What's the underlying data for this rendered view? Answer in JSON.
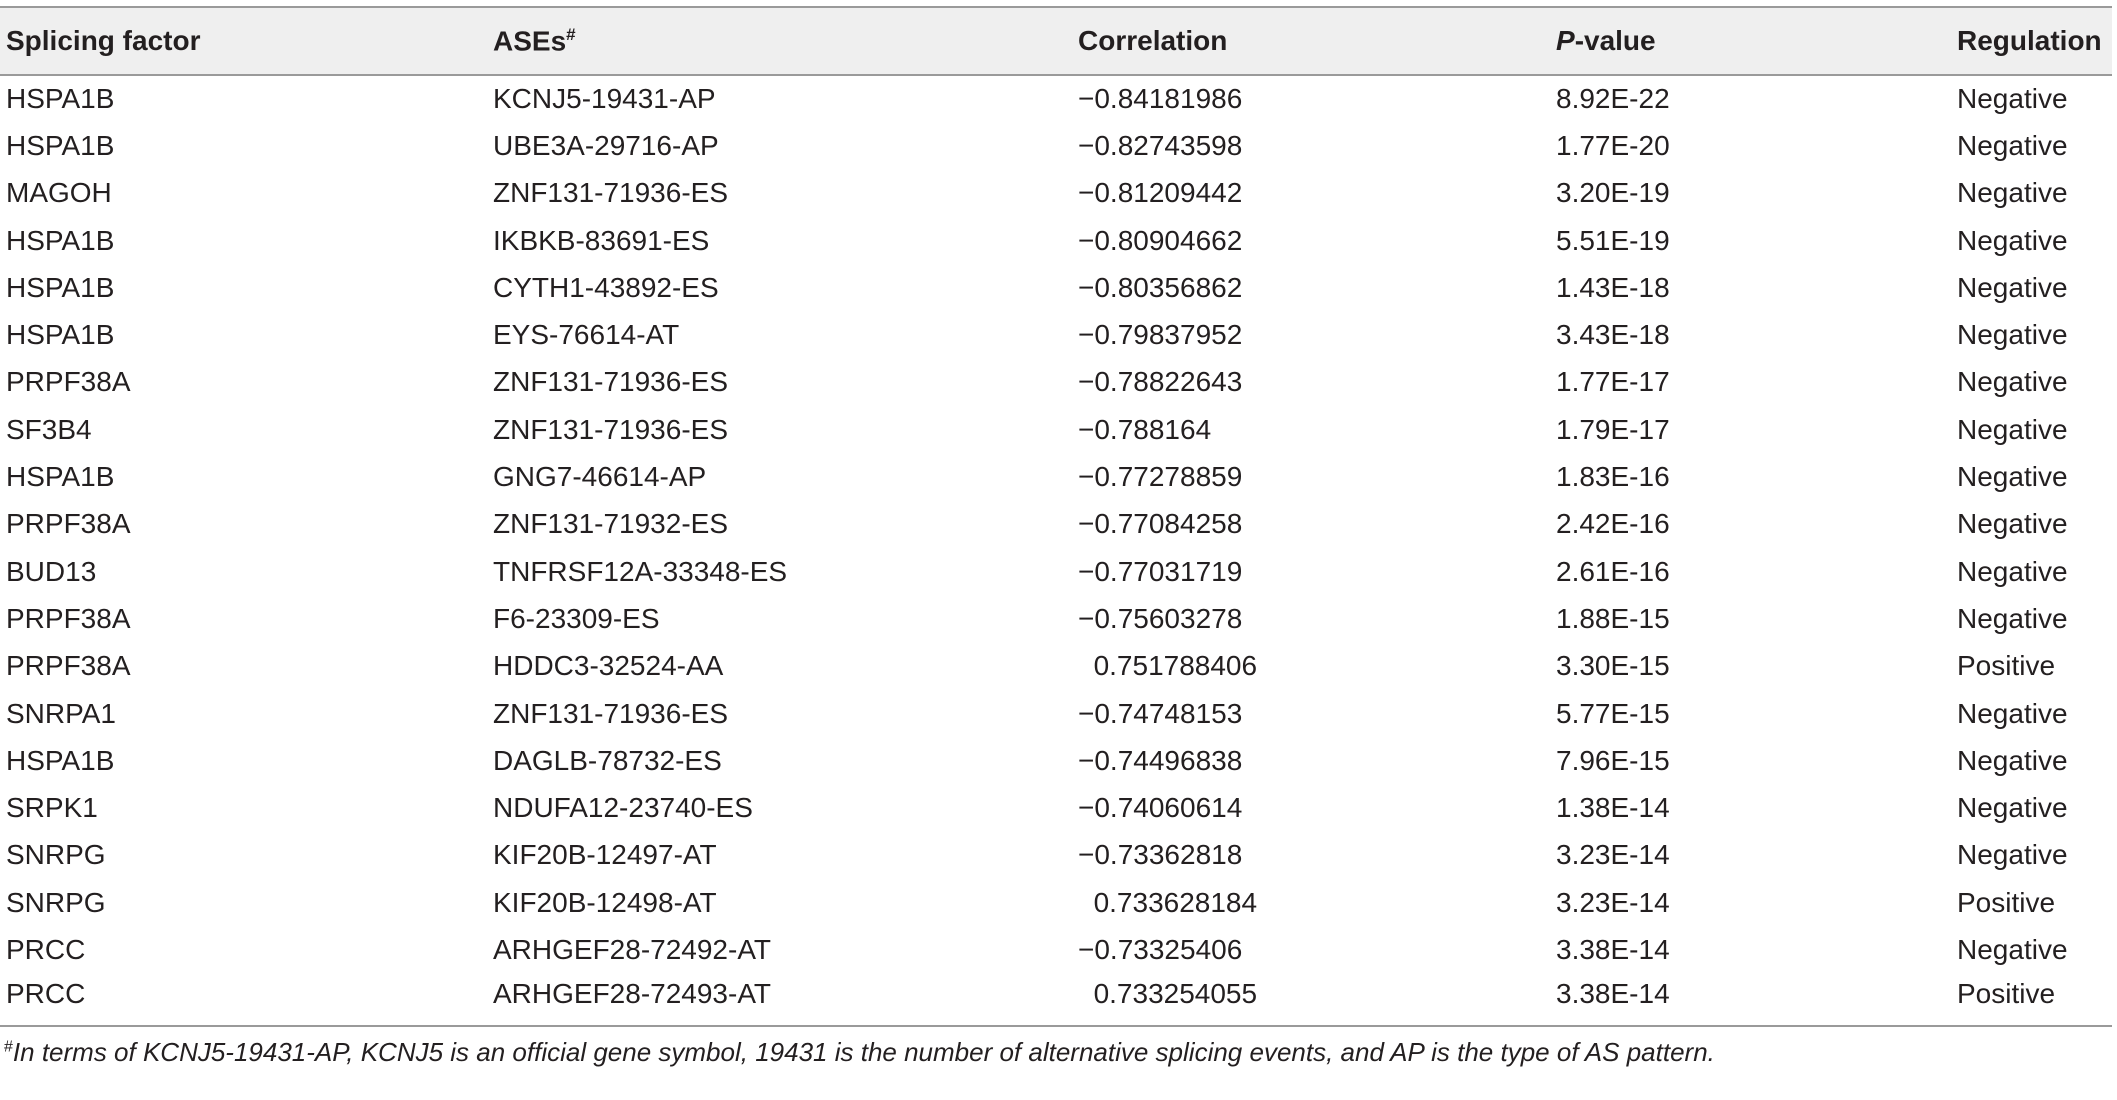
{
  "table": {
    "headers": {
      "splicing_factor": "Splicing factor",
      "ases": "ASEs",
      "ases_mark": "#",
      "correlation": "Correlation",
      "pvalue_italic": "P",
      "pvalue_rest": "-value",
      "regulation": "Regulation"
    },
    "rows": [
      [
        "HSPA1B",
        "KCNJ5-19431-AP",
        "−0.84181986",
        "8.92E-22",
        "Negative"
      ],
      [
        "HSPA1B",
        "UBE3A-29716-AP",
        "−0.82743598",
        "1.77E-20",
        "Negative"
      ],
      [
        "MAGOH",
        "ZNF131-71936-ES",
        "−0.81209442",
        "3.20E-19",
        "Negative"
      ],
      [
        "HSPA1B",
        "IKBKB-83691-ES",
        "−0.80904662",
        "5.51E-19",
        "Negative"
      ],
      [
        "HSPA1B",
        "CYTH1-43892-ES",
        "−0.80356862",
        "1.43E-18",
        "Negative"
      ],
      [
        "HSPA1B",
        "EYS-76614-AT",
        "−0.79837952",
        "3.43E-18",
        "Negative"
      ],
      [
        "PRPF38A",
        "ZNF131-71936-ES",
        "−0.78822643",
        "1.77E-17",
        "Negative"
      ],
      [
        "SF3B4",
        "ZNF131-71936-ES",
        "−0.788164",
        "1.79E-17",
        "Negative"
      ],
      [
        "HSPA1B",
        "GNG7-46614-AP",
        "−0.77278859",
        "1.83E-16",
        "Negative"
      ],
      [
        "PRPF38A",
        "ZNF131-71932-ES",
        "−0.77084258",
        "2.42E-16",
        "Negative"
      ],
      [
        "BUD13",
        "TNFRSF12A-33348-ES",
        "−0.77031719",
        "2.61E-16",
        "Negative"
      ],
      [
        "PRPF38A",
        "F6-23309-ES",
        "−0.75603278",
        "1.88E-15",
        "Negative"
      ],
      [
        "PRPF38A",
        "HDDC3-32524-AA",
        " 0.751788406",
        "3.30E-15",
        "Positive"
      ],
      [
        "SNRPA1",
        "ZNF131-71936-ES",
        "−0.74748153",
        "5.77E-15",
        "Negative"
      ],
      [
        "HSPA1B",
        "DAGLB-78732-ES",
        "−0.74496838",
        "7.96E-15",
        "Negative"
      ],
      [
        "SRPK1",
        "NDUFA12-23740-ES",
        "−0.74060614",
        "1.38E-14",
        "Negative"
      ],
      [
        "SNRPG",
        "KIF20B-12497-AT",
        "−0.73362818",
        "3.23E-14",
        "Negative"
      ],
      [
        "SNRPG",
        "KIF20B-12498-AT",
        " 0.733628184",
        "3.23E-14",
        "Positive"
      ],
      [
        "PRCC",
        "ARHGEF28-72492-AT",
        "−0.73325406",
        "3.38E-14",
        "Negative"
      ],
      [
        "PRCC",
        "ARHGEF28-72493-AT",
        " 0.733254055",
        "3.38E-14",
        "Positive"
      ]
    ]
  },
  "footnote": {
    "mark": "#",
    "text": "In terms of KCNJ5-19431-AP, KCNJ5 is an official gene symbol, 19431 is the number of alternative splicing events, and AP is the type of AS pattern."
  }
}
